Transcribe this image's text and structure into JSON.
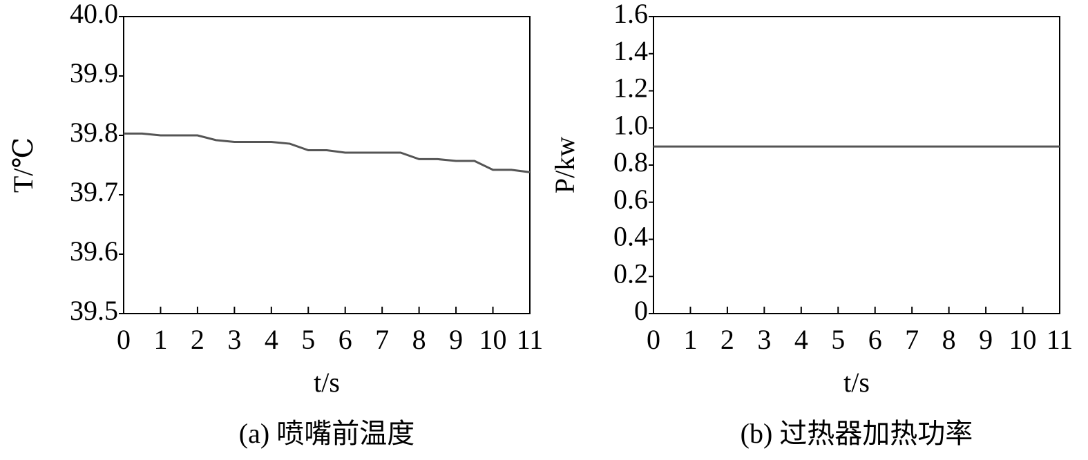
{
  "chart_data": [
    {
      "type": "line",
      "y_label": "T/℃",
      "x_label": "t/s",
      "caption": "(a) 喷嘴前温度",
      "x": [
        0,
        0.5,
        1,
        2,
        2.5,
        3,
        4,
        4.5,
        5,
        5.5,
        6,
        7.5,
        8,
        8.5,
        9,
        9.5,
        10,
        10.5,
        11
      ],
      "values": [
        39.803,
        39.803,
        39.8,
        39.8,
        39.792,
        39.789,
        39.789,
        39.786,
        39.775,
        39.775,
        39.771,
        39.771,
        39.76,
        39.76,
        39.757,
        39.757,
        39.742,
        39.742,
        39.738
      ],
      "color": "#555555",
      "xlim": [
        0,
        11
      ],
      "xticks": [
        0,
        1,
        2,
        3,
        4,
        5,
        6,
        7,
        8,
        9,
        10,
        11
      ],
      "ylim": [
        39.5,
        40
      ],
      "yticks": [
        39.5,
        39.6,
        39.7,
        39.8,
        39.9,
        {
          "value": 40,
          "label": "40.0"
        }
      ]
    },
    {
      "type": "line",
      "y_label": "P/kw",
      "x_label": "t/s",
      "caption": "(b) 过热器加热功率",
      "x": [
        0,
        11
      ],
      "values": [
        0.9,
        0.9
      ],
      "color": "#555555",
      "xlim": [
        0,
        11
      ],
      "xticks": [
        0,
        1,
        2,
        3,
        4,
        5,
        6,
        7,
        8,
        9,
        10,
        11
      ],
      "ylim": [
        0,
        1.6
      ],
      "yticks": [
        0,
        0.2,
        0.4,
        0.6,
        0.8,
        {
          "value": 1,
          "label": "1.0"
        },
        1.2,
        1.4,
        1.6
      ]
    }
  ]
}
